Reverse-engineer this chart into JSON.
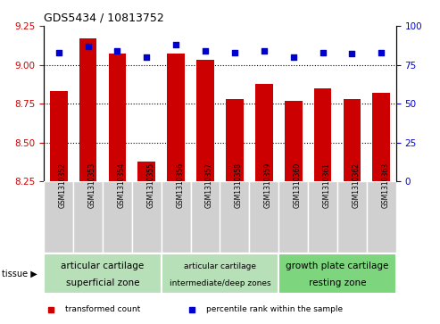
{
  "title": "GDS5434 / 10813752",
  "samples": [
    "GSM1310352",
    "GSM1310353",
    "GSM1310354",
    "GSM1310355",
    "GSM1310356",
    "GSM1310357",
    "GSM1310358",
    "GSM1310359",
    "GSM1310360",
    "GSM1310361",
    "GSM1310362",
    "GSM1310363"
  ],
  "bar_values": [
    8.83,
    9.17,
    9.07,
    8.38,
    9.07,
    9.03,
    8.78,
    8.88,
    8.77,
    8.85,
    8.78,
    8.82
  ],
  "percentile_values": [
    83,
    87,
    84,
    80,
    88,
    84,
    83,
    84,
    80,
    83,
    82,
    83
  ],
  "ylim_left": [
    8.25,
    9.25
  ],
  "ylim_right": [
    0,
    100
  ],
  "yticks_left": [
    8.25,
    8.5,
    8.75,
    9.0,
    9.25
  ],
  "yticks_right": [
    0,
    25,
    50,
    75,
    100
  ],
  "bar_color": "#cc0000",
  "dot_color": "#0000cc",
  "bar_width": 0.6,
  "tissue_groups": [
    {
      "label": "articular cartilage\nsuperficial zone",
      "start": 0,
      "end": 3,
      "color": "#b8e0b8",
      "fontsize": 7.5
    },
    {
      "label": "articular cartilage\nintermediate/deep zones",
      "start": 4,
      "end": 7,
      "color": "#b8e0b8",
      "fontsize": 6.5
    },
    {
      "label": "growth plate cartilage\nresting zone",
      "start": 8,
      "end": 11,
      "color": "#7dd67d",
      "fontsize": 7.5
    }
  ],
  "legend_items": [
    {
      "label": "transformed count",
      "color": "#cc0000"
    },
    {
      "label": "percentile rank within the sample",
      "color": "#0000cc"
    }
  ],
  "background_color": "#ffffff",
  "grid_color": "#000000",
  "tick_label_color_left": "#cc0000",
  "tick_label_color_right": "#0000cc",
  "xticklabel_bg": "#d0d0d0",
  "tissue_label": "tissue ▶"
}
